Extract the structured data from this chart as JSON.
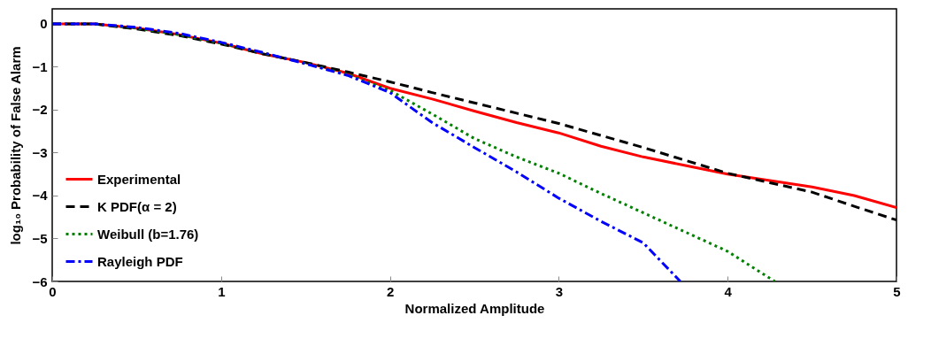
{
  "chart_data": {
    "type": "line",
    "xlabel": "Normalized Amplitude",
    "ylabel": "log₁₀ Probability of False Alarm",
    "xlim": [
      0,
      5
    ],
    "ylim": [
      -6,
      0.35
    ],
    "xticks": [
      0,
      1,
      2,
      3,
      4,
      5
    ],
    "yticks": [
      0,
      -1,
      -2,
      -3,
      -4,
      -5,
      -6
    ],
    "grid": false,
    "legend": "bottom left",
    "series": [
      {
        "name": "Experimental",
        "color": "#ff0000",
        "line_style": "solid",
        "x": [
          0,
          0.25,
          0.5,
          0.75,
          1,
          1.25,
          1.5,
          1.75,
          2,
          2.25,
          2.5,
          2.75,
          3,
          3.25,
          3.5,
          3.75,
          4,
          4.25,
          4.5,
          4.75,
          5
        ],
        "values": [
          0,
          0,
          -0.1,
          -0.25,
          -0.45,
          -0.7,
          -0.9,
          -1.15,
          -1.5,
          -1.75,
          -2.03,
          -2.3,
          -2.54,
          -2.85,
          -3.1,
          -3.3,
          -3.5,
          -3.65,
          -3.8,
          -4.0,
          -4.28
        ]
      },
      {
        "name": "K PDF(α = 2)",
        "color": "#000000",
        "line_style": "dashed",
        "x": [
          0,
          0.25,
          0.5,
          0.75,
          1,
          1.25,
          1.5,
          1.75,
          2,
          2.25,
          2.5,
          2.75,
          3,
          3.25,
          3.5,
          3.75,
          4,
          4.25,
          4.5,
          4.75,
          5
        ],
        "values": [
          0,
          0,
          -0.12,
          -0.27,
          -0.47,
          -0.7,
          -0.9,
          -1.12,
          -1.35,
          -1.6,
          -1.84,
          -2.08,
          -2.32,
          -2.6,
          -2.88,
          -3.18,
          -3.48,
          -3.7,
          -3.92,
          -4.25,
          -4.57
        ]
      },
      {
        "name": "Weibull (b=1.76)",
        "color": "#008000",
        "line_style": "dotted",
        "x": [
          0,
          0.25,
          0.5,
          0.75,
          1,
          1.25,
          1.5,
          1.75,
          2,
          2.25,
          2.5,
          2.75,
          3,
          3.25,
          3.5,
          3.75,
          4,
          4.28
        ],
        "values": [
          0,
          0,
          -0.1,
          -0.25,
          -0.45,
          -0.68,
          -0.92,
          -1.18,
          -1.55,
          -2.1,
          -2.67,
          -3.1,
          -3.48,
          -3.95,
          -4.4,
          -4.85,
          -5.3,
          -6
        ]
      },
      {
        "name": "Rayleigh PDF",
        "color": "#0000ff",
        "line_style": "dashdot",
        "x": [
          0,
          0.25,
          0.5,
          0.75,
          1,
          1.25,
          1.5,
          1.75,
          2,
          2.25,
          2.5,
          2.75,
          3,
          3.25,
          3.5,
          3.72
        ],
        "values": [
          0,
          0,
          -0.08,
          -0.22,
          -0.43,
          -0.67,
          -0.93,
          -1.2,
          -1.6,
          -2.3,
          -2.88,
          -3.45,
          -4.06,
          -4.6,
          -5.1,
          -6
        ]
      }
    ]
  }
}
